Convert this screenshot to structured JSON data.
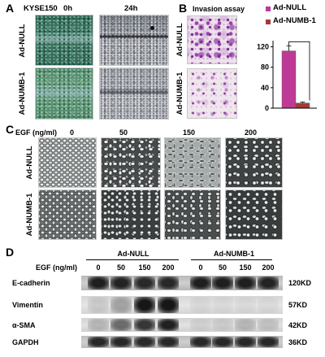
{
  "panels": {
    "a": {
      "label": "A",
      "cell_line": "KYSE150",
      "timepoints": [
        "0h",
        "24h"
      ],
      "rows": [
        "Ad-NULL",
        "Ad-NUMB-1"
      ]
    },
    "b": {
      "label": "B",
      "title": "Invasion assay",
      "rows": [
        "Ad-NULL",
        "Ad-NUMB-1"
      ]
    },
    "c": {
      "label": "C",
      "egf_label": "EGF (ng/ml)",
      "doses": [
        "0",
        "50",
        "150",
        "200"
      ],
      "rows": [
        "Ad-NULL",
        "Ad-NUMB-1"
      ]
    },
    "d": {
      "label": "D",
      "groups": [
        "Ad-NULL",
        "Ad-NUMB-1"
      ],
      "egf_label": "EGF (ng/ml)",
      "lanes": [
        "0",
        "50",
        "150",
        "200",
        "0",
        "50",
        "150",
        "200"
      ],
      "blots": [
        {
          "protein": "E-cadherin",
          "size": "120KD",
          "intensity": [
            0.9,
            0.88,
            0.85,
            0.85,
            0.9,
            0.9,
            0.9,
            0.88
          ]
        },
        {
          "protein": "Vimentin",
          "size": "57KD",
          "intensity": [
            0.12,
            0.3,
            0.95,
            0.95,
            0.06,
            0.05,
            0.05,
            0.05
          ]
        },
        {
          "protein": "α-SMA",
          "size": "42KD",
          "intensity": [
            0.2,
            0.55,
            0.8,
            0.9,
            0.08,
            0.1,
            0.2,
            0.15
          ]
        },
        {
          "protein": "GAPDH",
          "size": "36KD",
          "intensity": [
            0.85,
            0.85,
            0.85,
            0.85,
            0.85,
            0.85,
            0.85,
            0.85
          ]
        }
      ]
    }
  },
  "chart_data": {
    "type": "bar",
    "categories": [
      "Ad-NULL",
      "Ad-NUMB-1"
    ],
    "values": [
      112,
      10
    ],
    "errors": [
      10,
      2
    ],
    "yticks": [
      0,
      40,
      80,
      120
    ],
    "ylim": [
      0,
      132
    ],
    "colors": [
      "#bf3a96",
      "#a53a36"
    ],
    "legend": "top-right",
    "grid": false
  }
}
